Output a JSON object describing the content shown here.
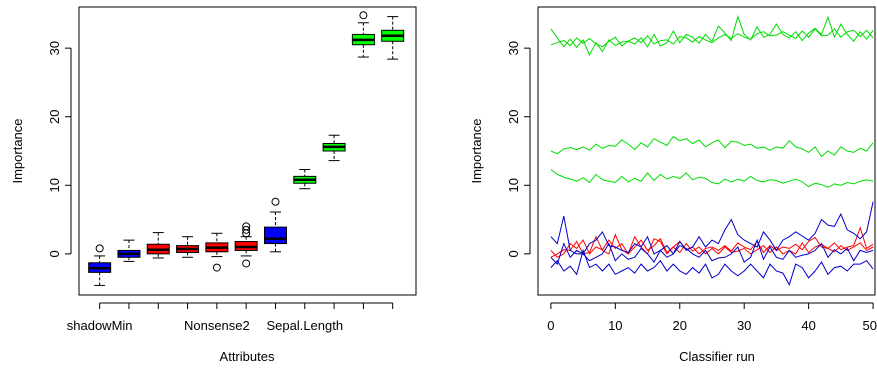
{
  "colors": {
    "green": "#00ff00",
    "red": "#ff0000",
    "blue": "#0000ff",
    "green_line": "#00dd00",
    "red_line": "#ff0000",
    "blue_line": "#0000cc"
  },
  "chart_data": [
    {
      "type": "box",
      "title": "",
      "xlabel": "Attributes",
      "ylabel": "Importance",
      "ylim": [
        -6,
        36
      ],
      "yticks": [
        0,
        10,
        20,
        30
      ],
      "tick_labels_shown": [
        "shadowMin",
        "Nonsense2",
        "Sepal.Length"
      ],
      "boxes": [
        {
          "position": 1,
          "label": "shadowMin",
          "status": "shadow",
          "color": "blue",
          "min": -4.6,
          "q1": -2.7,
          "median": -2.1,
          "q3": -1.3,
          "max": -0.3,
          "outliers": [
            0.8
          ]
        },
        {
          "position": 2,
          "label": "",
          "status": "shadow",
          "color": "blue",
          "min": -1.1,
          "q1": -0.5,
          "median": 0.0,
          "q3": 0.5,
          "max": 2.0,
          "outliers": []
        },
        {
          "position": 3,
          "label": "",
          "status": "rejected",
          "color": "red",
          "min": -0.6,
          "q1": 0.0,
          "median": 0.6,
          "q3": 1.4,
          "max": 3.1,
          "outliers": []
        },
        {
          "position": 4,
          "label": "",
          "status": "rejected",
          "color": "red",
          "min": -0.5,
          "q1": 0.2,
          "median": 0.7,
          "q3": 1.2,
          "max": 2.5,
          "outliers": []
        },
        {
          "position": 5,
          "label": "Nonsense2",
          "status": "rejected",
          "color": "red",
          "min": -0.4,
          "q1": 0.3,
          "median": 0.9,
          "q3": 1.6,
          "max": 3.0,
          "outliers": [
            -2.0
          ]
        },
        {
          "position": 6,
          "label": "",
          "status": "rejected",
          "color": "red",
          "min": -0.3,
          "q1": 0.5,
          "median": 1.0,
          "q3": 1.8,
          "max": 2.5,
          "outliers": [
            3.0,
            3.5,
            4.0,
            -1.4
          ]
        },
        {
          "position": 7,
          "label": "",
          "status": "shadow",
          "color": "blue",
          "min": 0.3,
          "q1": 1.5,
          "median": 2.2,
          "q3": 3.9,
          "max": 6.1,
          "outliers": [
            7.6
          ]
        },
        {
          "position": 8,
          "label": "Sepal.Length",
          "status": "confirmed",
          "color": "green",
          "min": 9.5,
          "q1": 10.3,
          "median": 10.8,
          "q3": 11.3,
          "max": 12.3,
          "outliers": []
        },
        {
          "position": 9,
          "label": "",
          "status": "confirmed",
          "color": "green",
          "min": 13.6,
          "q1": 15.0,
          "median": 15.6,
          "q3": 16.1,
          "max": 17.3,
          "outliers": []
        },
        {
          "position": 10,
          "label": "",
          "status": "confirmed",
          "color": "green",
          "min": 28.7,
          "q1": 30.5,
          "median": 31.2,
          "q3": 32.0,
          "max": 33.7,
          "outliers": [
            34.8
          ]
        },
        {
          "position": 11,
          "label": "",
          "status": "confirmed",
          "color": "green",
          "min": 28.4,
          "q1": 31.0,
          "median": 31.8,
          "q3": 32.6,
          "max": 34.6,
          "outliers": []
        }
      ]
    },
    {
      "type": "line",
      "title": "",
      "xlabel": "Classifier run",
      "ylabel": "Importance",
      "xlim": [
        0,
        50
      ],
      "ylim": [
        -6,
        36
      ],
      "xticks": [
        0,
        10,
        20,
        30,
        40,
        50
      ],
      "yticks": [
        0,
        10,
        20,
        30
      ],
      "x": [
        0,
        1,
        2,
        3,
        4,
        5,
        6,
        7,
        8,
        9,
        10,
        11,
        12,
        13,
        14,
        15,
        16,
        17,
        18,
        19,
        20,
        21,
        22,
        23,
        24,
        25,
        26,
        27,
        28,
        29,
        30,
        31,
        32,
        33,
        34,
        35,
        36,
        37,
        38,
        39,
        40,
        41,
        42,
        43,
        44,
        45,
        46,
        47,
        48,
        49,
        50
      ],
      "series": [
        {
          "color": "green",
          "values": [
            32.8,
            31.5,
            30.2,
            31.3,
            30.1,
            31.2,
            29.0,
            30.8,
            29.5,
            31.2,
            30.4,
            30.9,
            31.0,
            30.6,
            31.5,
            30.2,
            32.0,
            30.3,
            30.8,
            32.5,
            30.8,
            32.0,
            31.6,
            30.7,
            32.0,
            31.0,
            33.2,
            32.2,
            31.1,
            34.6,
            32.0,
            31.2,
            33.1,
            31.6,
            32.0,
            33.5,
            32.0,
            31.5,
            32.4,
            31.1,
            32.2,
            32.9,
            32.0,
            34.5,
            31.6,
            33.5,
            32.0,
            31.0,
            32.4,
            31.3,
            32.6
          ]
        },
        {
          "color": "green",
          "values": [
            30.5,
            30.8,
            31.1,
            30.4,
            31.5,
            30.7,
            31.4,
            30.6,
            30.2,
            31.0,
            31.6,
            30.3,
            31.0,
            31.5,
            30.8,
            31.8,
            30.6,
            31.1,
            31.2,
            30.6,
            31.7,
            31.5,
            30.9,
            31.7,
            31.2,
            30.8,
            31.5,
            32.0,
            31.4,
            32.1,
            31.6,
            31.3,
            32.1,
            32.4,
            31.8,
            31.9,
            32.4,
            31.9,
            31.4,
            32.5,
            31.6,
            32.8,
            31.8,
            31.9,
            32.8,
            31.6,
            32.4,
            32.6,
            31.7,
            32.6,
            31.5
          ]
        },
        {
          "color": "green",
          "values": [
            15.0,
            14.6,
            15.3,
            15.5,
            15.2,
            15.6,
            15.1,
            16.0,
            15.4,
            15.8,
            15.7,
            16.6,
            16.0,
            15.2,
            16.2,
            15.6,
            16.8,
            16.3,
            15.8,
            17.1,
            16.5,
            16.8,
            16.1,
            16.6,
            15.6,
            16.2,
            16.6,
            15.5,
            16.4,
            16.3,
            15.8,
            16.0,
            15.4,
            15.6,
            15.1,
            15.6,
            15.4,
            16.5,
            15.6,
            15.3,
            14.8,
            15.6,
            14.2,
            15.0,
            14.4,
            15.6,
            15.0,
            14.8,
            15.4,
            15.0,
            16.2
          ]
        },
        {
          "color": "green",
          "values": [
            12.3,
            11.6,
            11.2,
            10.9,
            10.6,
            11.1,
            10.4,
            11.6,
            10.8,
            10.6,
            10.4,
            11.3,
            10.5,
            11.0,
            10.6,
            11.8,
            10.7,
            11.6,
            10.9,
            11.3,
            11.0,
            11.8,
            10.8,
            11.2,
            11.0,
            10.4,
            10.2,
            10.9,
            10.5,
            10.9,
            10.6,
            11.3,
            10.7,
            10.5,
            10.8,
            10.7,
            10.3,
            10.6,
            10.9,
            10.5,
            9.8,
            10.3,
            10.1,
            9.7,
            10.2,
            10.0,
            10.4,
            10.2,
            10.6,
            10.8,
            10.6
          ]
        },
        {
          "color": "red",
          "values": [
            0.5,
            -0.5,
            0.0,
            1.5,
            0.8,
            2.0,
            0.0,
            1.0,
            0.6,
            2.0,
            0.8,
            1.5,
            0.0,
            1.0,
            2.0,
            0.5,
            1.2,
            2.2,
            0.2,
            1.0,
            1.8,
            0.6,
            1.0,
            0.0,
            0.8,
            1.0,
            0.5,
            1.2,
            0.4,
            1.6,
            1.0,
            0.6,
            1.8,
            0.2,
            1.2,
            0.5,
            1.0,
            0.8,
            1.4,
            0.6,
            1.8,
            2.4,
            1.0,
            0.8,
            1.6,
            0.6,
            1.0,
            1.2,
            3.8,
            0.8,
            1.4
          ]
        },
        {
          "color": "red",
          "values": [
            -0.5,
            0.0,
            0.6,
            0.5,
            1.8,
            0.0,
            0.2,
            2.5,
            0.5,
            0.0,
            2.8,
            0.6,
            0.0,
            2.5,
            1.0,
            0.0,
            2.2,
            1.8,
            0.0,
            1.0,
            0.2,
            1.5,
            0.4,
            1.0,
            0.0,
            0.8,
            0.0,
            1.0,
            0.2,
            0.4,
            0.8,
            0.0,
            0.6,
            1.2,
            0.2,
            1.0,
            0.0,
            0.5,
            0.0,
            1.6,
            0.2,
            1.0,
            1.4,
            0.8,
            0.3,
            1.2,
            0.5,
            1.0,
            1.6,
            0.5,
            1.0
          ]
        },
        {
          "color": "blue",
          "values": [
            2.5,
            1.5,
            5.5,
            0.5,
            0.0,
            0.0,
            1.5,
            2.0,
            3.2,
            1.2,
            1.0,
            0.5,
            0.2,
            1.5,
            1.0,
            2.5,
            0.0,
            0.5,
            1.2,
            0.0,
            1.8,
            0.5,
            1.0,
            2.5,
            1.0,
            2.0,
            1.5,
            3.5,
            5.0,
            2.8,
            2.0,
            1.5,
            1.0,
            3.2,
            2.0,
            0.5,
            2.0,
            2.5,
            3.2,
            2.6,
            2.0,
            3.0,
            5.0,
            4.2,
            4.0,
            5.8,
            3.5,
            3.0,
            2.2,
            3.2,
            7.6
          ]
        },
        {
          "color": "blue",
          "values": [
            -0.5,
            -1.5,
            1.5,
            -0.5,
            0.5,
            0.0,
            -1.0,
            -0.5,
            0.0,
            1.5,
            -1.0,
            0.0,
            -0.8,
            -0.5,
            0.8,
            0.0,
            -1.2,
            0.5,
            -0.5,
            0.0,
            1.2,
            0.8,
            0.0,
            -0.5,
            0.5,
            -1.0,
            -0.6,
            -0.5,
            0.0,
            1.0,
            -1.2,
            -0.5,
            2.0,
            -0.8,
            1.0,
            -0.5,
            -0.8,
            0.5,
            -0.5,
            -0.2,
            0.0,
            0.5,
            1.5,
            -0.5,
            0.6,
            0.0,
            0.8,
            -1.0,
            0.5,
            0.2,
            0.5
          ]
        },
        {
          "color": "blue",
          "values": [
            -2.0,
            -1.0,
            -2.5,
            -1.8,
            -3.0,
            0.5,
            -2.0,
            -1.5,
            -2.5,
            -1.5,
            -3.0,
            -2.5,
            -2.0,
            -2.8,
            -1.5,
            -2.5,
            -2.0,
            -1.0,
            -2.5,
            -1.5,
            -2.5,
            -3.0,
            -2.0,
            -2.8,
            -1.5,
            -3.5,
            -3.0,
            -1.5,
            -2.5,
            -3.2,
            -2.5,
            -1.5,
            -2.5,
            -3.5,
            -1.5,
            -2.5,
            -2.8,
            -4.5,
            -1.5,
            -2.0,
            -3.5,
            -2.5,
            -1.2,
            -3.0,
            -2.0,
            -1.8,
            -2.5,
            -1.5,
            -1.5,
            -1.0,
            -2.2
          ]
        }
      ]
    }
  ]
}
